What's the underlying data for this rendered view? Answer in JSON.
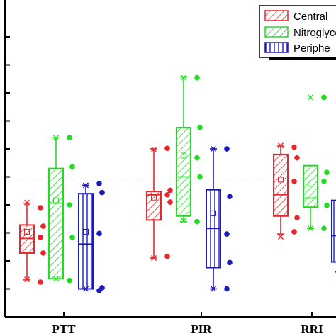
{
  "chart_data": {
    "type": "box",
    "categories": [
      "PTT",
      "PIR",
      "RRI"
    ],
    "ylim": [
      0,
      5.1
    ],
    "yticks": [
      0.5,
      1.0,
      1.5,
      2.0,
      2.5,
      3.0,
      3.5,
      4.0,
      4.5,
      5.0
    ],
    "reference_line": 2.5,
    "grid": false,
    "legend_position": "top-right",
    "colors": {
      "central": "#e8262b",
      "nitro": "#22dc24",
      "peripheral": "#1a1aba"
    },
    "series": [
      {
        "name": "Central",
        "color": "#e8262b",
        "pattern": "diagonal",
        "boxes": [
          {
            "category": "PTT",
            "min": 0.66,
            "q1": 1.14,
            "median": 1.4,
            "mean": 1.52,
            "q3": 1.64,
            "max": 2.03,
            "x_min": 0.67,
            "x_max": 2.04,
            "points": [
              1.95,
              1.62,
              1.42,
              1.14,
              0.62
            ]
          },
          {
            "category": "PIR",
            "min": 1.05,
            "q1": 1.73,
            "median": 2.18,
            "mean": 2.13,
            "q3": 2.24,
            "max": 3.0,
            "x_min": 1.05,
            "x_max": 2.99,
            "points": [
              3.01,
              2.26,
              2.18,
              2.05,
              1.08
            ]
          },
          {
            "category": "RRI",
            "min": 1.48,
            "q1": 1.8,
            "median": 2.18,
            "mean": 2.45,
            "q3": 2.9,
            "max": 3.05,
            "x_min": 1.43,
            "x_max": 3.06,
            "points": [
              3.03,
              2.84,
              2.42,
              1.77,
              1.52
            ]
          }
        ]
      },
      {
        "name": "Nitroglycerin",
        "color": "#22dc24",
        "pattern": "diagonal",
        "boxes": [
          {
            "category": "PTT",
            "min": 0.68,
            "q1": 0.68,
            "median": 2.03,
            "mean": 2.08,
            "q3": 2.65,
            "max": 3.2,
            "x_min": 0.68,
            "x_max": 3.2,
            "points": [
              3.2,
              2.68,
              2.0,
              1.42,
              0.65
            ]
          },
          {
            "category": "PIR",
            "min": 1.7,
            "q1": 1.8,
            "median": 2.5,
            "mean": 2.88,
            "q3": 3.38,
            "max": 4.28,
            "x_min": 1.72,
            "x_max": 4.27,
            "points": [
              4.27,
              3.38,
              2.84,
              2.5,
              1.7
            ]
          },
          {
            "category": "RRI",
            "min": 1.58,
            "q1": 1.96,
            "median": 2.12,
            "mean": 2.38,
            "q3": 2.7,
            "max": 2.7,
            "x_min": 1.58,
            "x_max": 3.92,
            "points": [
              3.92,
              2.58,
              2.42,
              1.99,
              1.58
            ]
          }
        ]
      },
      {
        "name": "Peripheral",
        "color": "#1a1aba",
        "pattern": "vertical",
        "boxes": [
          {
            "category": "PTT",
            "min": 0.5,
            "q1": 0.5,
            "median": 1.3,
            "mean": 1.52,
            "q3": 2.2,
            "max": 2.35,
            "x_min": 0.5,
            "x_max": 2.35,
            "points": [
              2.38,
              2.22,
              1.49,
              0.52,
              0.47
            ]
          },
          {
            "category": "PIR",
            "min": 0.5,
            "q1": 0.88,
            "median": 1.58,
            "mean": 1.85,
            "q3": 2.27,
            "max": 3.0,
            "x_min": 0.5,
            "x_max": 3.0,
            "points": [
              3.0,
              2.15,
              1.48,
              0.97,
              0.5
            ]
          },
          {
            "category": "RRI",
            "min": 0.8,
            "q1": 0.98,
            "median": 1.45,
            "mean": 1.55,
            "q3": 2.08,
            "max": 2.08,
            "x_min": 0.8,
            "x_max": 2.08,
            "points": []
          }
        ]
      }
    ]
  },
  "legend": [
    {
      "label": "Central",
      "color": "#e8262b",
      "pattern": "diagonal"
    },
    {
      "label": "Nitroglyce",
      "color": "#22dc24",
      "pattern": "diagonal"
    },
    {
      "label": "Periphe",
      "color": "#1a1aba",
      "pattern": "vertical"
    }
  ]
}
